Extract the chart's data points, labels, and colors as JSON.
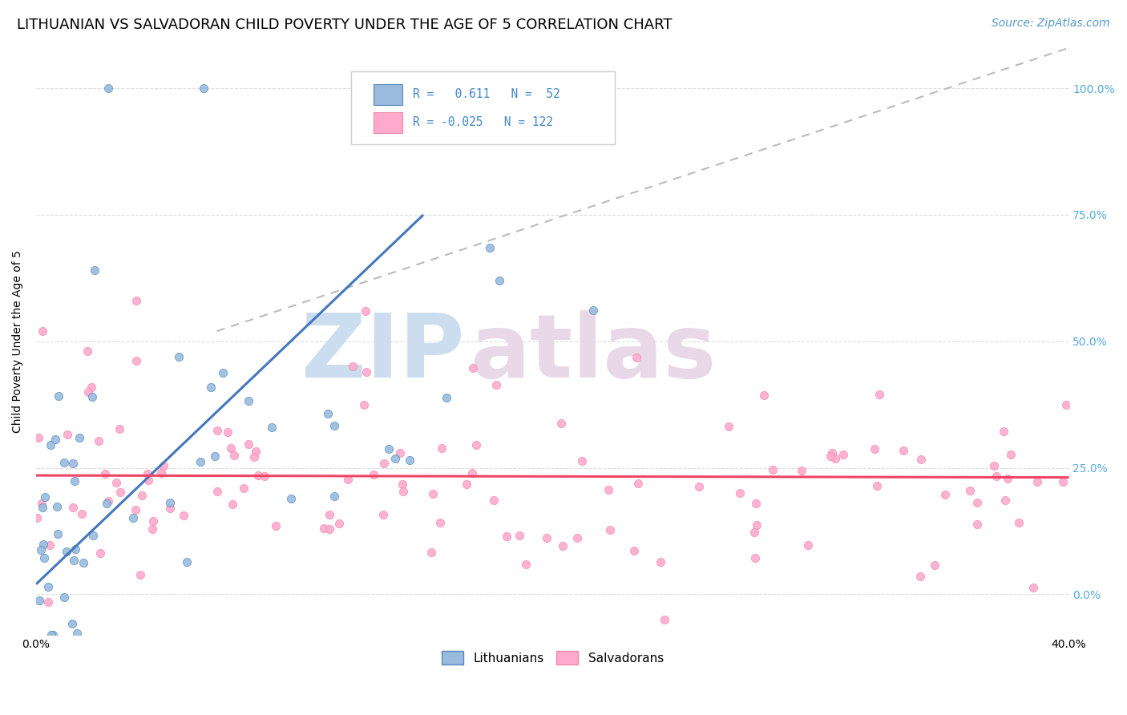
{
  "title": "LITHUANIAN VS SALVADORAN CHILD POVERTY UNDER THE AGE OF 5 CORRELATION CHART",
  "source": "Source: ZipAtlas.com",
  "ylabel": "Child Poverty Under the Age of 5",
  "yticks": [
    "0.0%",
    "25.0%",
    "50.0%",
    "75.0%",
    "100.0%"
  ],
  "ytick_vals": [
    0,
    25,
    50,
    75,
    100
  ],
  "xlim": [
    0,
    40
  ],
  "ylim": [
    -8,
    108
  ],
  "R_lith": 0.611,
  "N_lith": 52,
  "R_salv": -0.025,
  "N_salv": 122,
  "blue_color": "#99BBDD",
  "pink_color": "#FFAACC",
  "blue_edge_color": "#5588BB",
  "pink_edge_color": "#EE88AA",
  "blue_line_color": "#4477BB",
  "pink_line_color": "#EE4466",
  "dashed_line_color": "#BBBBBB",
  "legend_lith": "Lithuanians",
  "legend_salv": "Salvadorans",
  "title_fontsize": 13,
  "source_fontsize": 10,
  "axis_label_fontsize": 10,
  "tick_fontsize": 10,
  "legend_fontsize": 11
}
